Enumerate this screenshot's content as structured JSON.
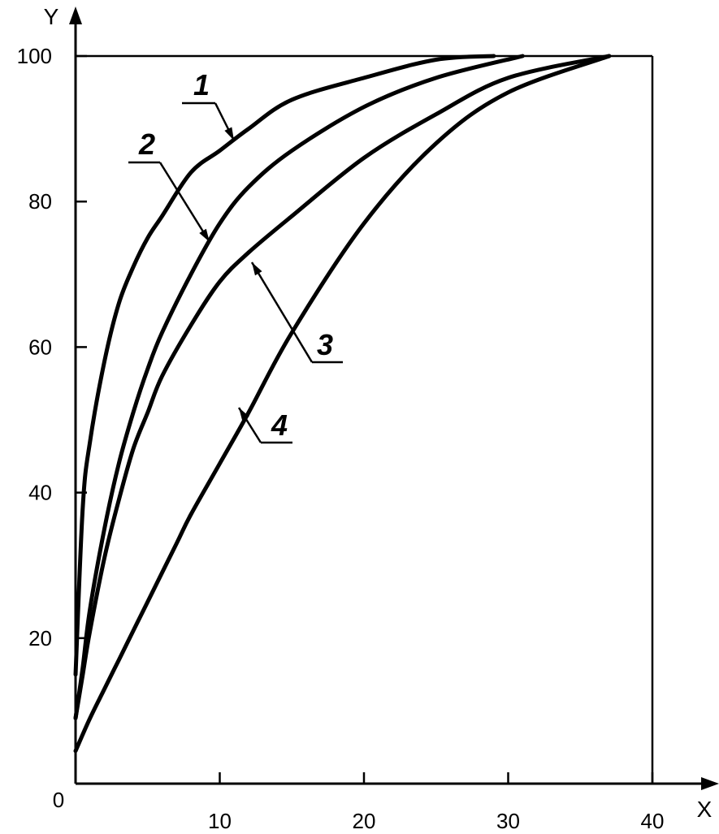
{
  "chart_data": {
    "type": "line",
    "title": "",
    "xlabel": "X",
    "ylabel": "Y",
    "xlim": [
      0,
      40
    ],
    "ylim": [
      0,
      100
    ],
    "x_ticks": [
      "0",
      "10",
      "20",
      "30",
      "40"
    ],
    "y_ticks": [
      "20",
      "40",
      "60",
      "80",
      "100"
    ],
    "origin_label": "0",
    "grid": false,
    "line_color": "#000000",
    "series": [
      {
        "name": "1",
        "points": [
          [
            0,
            15
          ],
          [
            0.5,
            38
          ],
          [
            1,
            47
          ],
          [
            2,
            58
          ],
          [
            3,
            66
          ],
          [
            4,
            71
          ],
          [
            5,
            75
          ],
          [
            6,
            78
          ],
          [
            8,
            84
          ],
          [
            10,
            87
          ],
          [
            12,
            90
          ],
          [
            15,
            94
          ],
          [
            20,
            97
          ],
          [
            25,
            99.5
          ],
          [
            29,
            100
          ]
        ]
      },
      {
        "name": "2",
        "points": [
          [
            0,
            9
          ],
          [
            0.5,
            16
          ],
          [
            1,
            24
          ],
          [
            2,
            35
          ],
          [
            3,
            44
          ],
          [
            4,
            51
          ],
          [
            5,
            57
          ],
          [
            6,
            62
          ],
          [
            8,
            70
          ],
          [
            10,
            77
          ],
          [
            12,
            82
          ],
          [
            15,
            87
          ],
          [
            20,
            93
          ],
          [
            25,
            97
          ],
          [
            31,
            100
          ]
        ]
      },
      {
        "name": "3",
        "points": [
          [
            0,
            9
          ],
          [
            0.5,
            15
          ],
          [
            1,
            21
          ],
          [
            2,
            31
          ],
          [
            3,
            39
          ],
          [
            4,
            46
          ],
          [
            5,
            51
          ],
          [
            6,
            56
          ],
          [
            8,
            63
          ],
          [
            10,
            69
          ],
          [
            12,
            73
          ],
          [
            15,
            78
          ],
          [
            20,
            86
          ],
          [
            25,
            92
          ],
          [
            30,
            97
          ],
          [
            37,
            100
          ]
        ]
      },
      {
        "name": "4",
        "points": [
          [
            0,
            4.5
          ],
          [
            1,
            9
          ],
          [
            2,
            13
          ],
          [
            3,
            17
          ],
          [
            4,
            21
          ],
          [
            5,
            25
          ],
          [
            7,
            33
          ],
          [
            8,
            37
          ],
          [
            10,
            44
          ],
          [
            12,
            51
          ],
          [
            15,
            62
          ],
          [
            20,
            77
          ],
          [
            25,
            88
          ],
          [
            30,
            95
          ],
          [
            37,
            100
          ]
        ]
      }
    ]
  }
}
